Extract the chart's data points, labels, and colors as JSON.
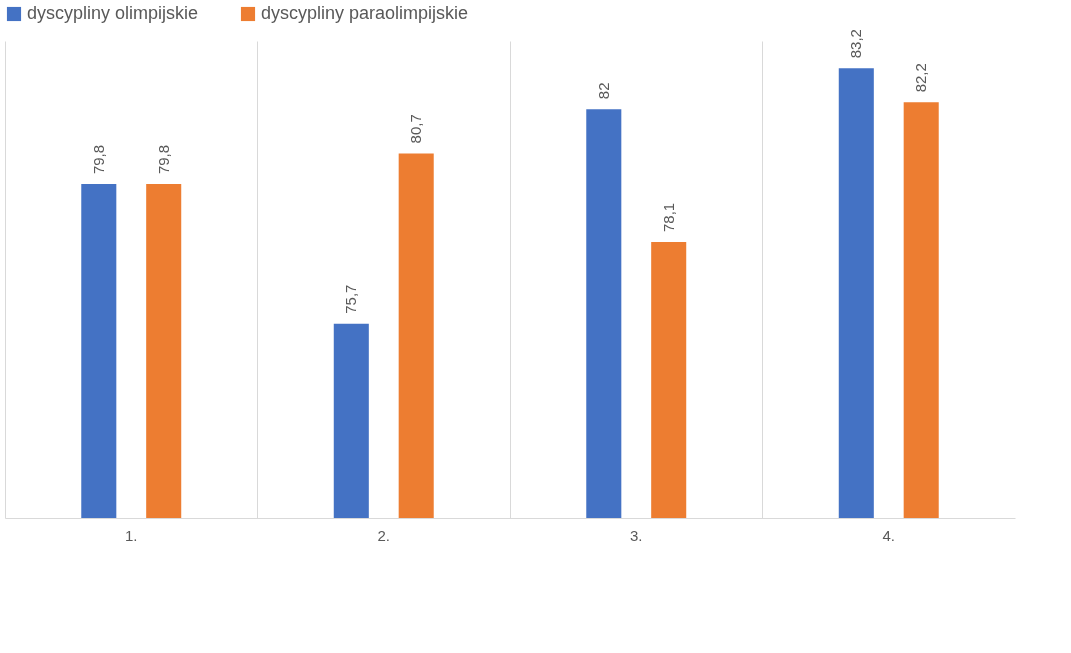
{
  "chart_data": {
    "type": "bar",
    "categories": [
      "1.",
      "2.",
      "3.",
      "4."
    ],
    "series": [
      {
        "name": "dyscypliny olimpijskie",
        "color": "#4472c4",
        "values": [
          79.8,
          75.7,
          82,
          83.2
        ],
        "value_labels": [
          "79,8",
          "75,7",
          "82",
          "83,2"
        ]
      },
      {
        "name": "dyscypliny paraolimpijskie",
        "color": "#ed7d31",
        "values": [
          79.8,
          80.7,
          78.1,
          82.2
        ],
        "value_labels": [
          "79,8",
          "80,7",
          "78,1",
          "82,2"
        ]
      }
    ],
    "ylim": [
      70,
      84
    ],
    "grid": "x",
    "legend": "top",
    "tick_labels": "x"
  }
}
